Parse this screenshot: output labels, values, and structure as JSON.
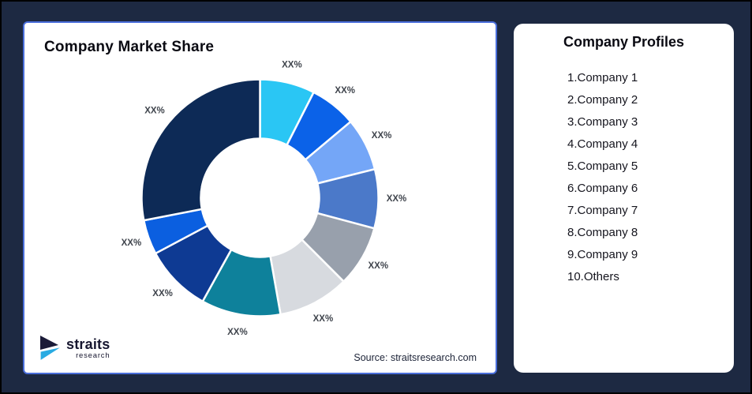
{
  "page": {
    "background_color": "#1D2942",
    "border_color": "#000000"
  },
  "market_share_card": {
    "title": "Company Market Share",
    "border_color": "#4A6EDB",
    "source_text": "Source: straitsresearch.com",
    "logo": {
      "brand": "straits",
      "sub": "research",
      "navy_color": "#1B1B38",
      "cyan_color": "#29ABE2"
    }
  },
  "chart_data": {
    "type": "pie",
    "subtype": "donut",
    "title": "Company Market Share",
    "legend_position": "none",
    "start_angle_deg": 0,
    "direction": "clockwise",
    "inner_radius_px": 75,
    "outer_radius_px": 150,
    "segments": [
      {
        "index": 1,
        "label": "XX%",
        "span_deg": 27,
        "color": "#2AC6F4"
      },
      {
        "index": 2,
        "label": "XX%",
        "span_deg": 23,
        "color": "#0B62E8"
      },
      {
        "index": 3,
        "label": "XX%",
        "span_deg": 26,
        "color": "#74A6F7"
      },
      {
        "index": 4,
        "label": "XX%",
        "span_deg": 29,
        "color": "#4B79C9"
      },
      {
        "index": 5,
        "label": "XX%",
        "span_deg": 30,
        "color": "#98A0AC"
      },
      {
        "index": 6,
        "label": "XX%",
        "span_deg": 35,
        "color": "#D7DADF"
      },
      {
        "index": 7,
        "label": "XX%",
        "span_deg": 39,
        "color": "#0E819B"
      },
      {
        "index": 8,
        "label": "XX%",
        "span_deg": 33,
        "color": "#0E3A93"
      },
      {
        "index": 9,
        "label": "XX%",
        "span_deg": 17,
        "color": "#0B5FE0"
      },
      {
        "index": 10,
        "label": "XX%",
        "span_deg": 101,
        "color": "#0D2A56"
      }
    ]
  },
  "profiles_card": {
    "title": "Company Profiles",
    "items": [
      "1.Company 1",
      "2.Company 2",
      "3.Company 3",
      "4.Company 4",
      "5.Company 5",
      "6.Company 6",
      "7.Company 7",
      "8.Company 8",
      "9.Company 9",
      "10.Others"
    ]
  }
}
